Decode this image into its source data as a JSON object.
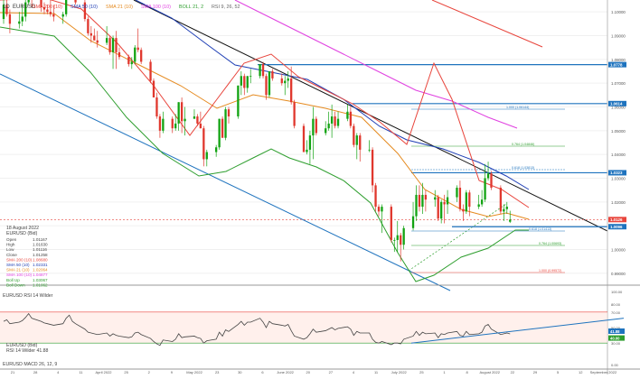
{
  "header": {
    "timeframe": "1D",
    "symbol": "EURUSD",
    "indicators": [
      "SMA 200 (10)",
      "SMA 50 (10)",
      "SMA 21 (10)",
      "SMA 100 (10)",
      "BOLL 21, 2",
      "RSI 9, 26, 52"
    ]
  },
  "info_panel": {
    "date": "18 August 2022",
    "title": "EURUSD (Bid)",
    "rows": [
      {
        "label": "Open",
        "value": "1.01167"
      },
      {
        "label": "High",
        "value": "1.01630"
      },
      {
        "label": "Low",
        "value": "1.01116"
      },
      {
        "label": "Close",
        "value": "1.01258"
      },
      {
        "label": "SMA 200 (10)",
        "value": "1.08680"
      },
      {
        "label": "SMA 50 (10)",
        "value": "1.02331"
      },
      {
        "label": "SMA 21 (10)",
        "value": "1.02064"
      },
      {
        "label": "SMA 100 (10)",
        "value": "1.04877"
      },
      {
        "label": "Boll Up",
        "value": "1.03067"
      },
      {
        "label": "Boll Down",
        "value": "1.01062"
      }
    ]
  },
  "price_axis": {
    "ticks": [
      "1.10000",
      "1.09000",
      "1.08000",
      "1.07000",
      "1.06000",
      "1.05000",
      "1.04000",
      "1.03000",
      "1.02000",
      "1.01000",
      "1.00000",
      "0.99000"
    ],
    "markers": [
      {
        "label": "1.0778",
        "color": "#1e73be"
      },
      {
        "label": "1.0614",
        "color": "#1e73be"
      },
      {
        "label": "1.0323",
        "color": "#1e73be"
      },
      {
        "label": "1.0096",
        "color": "#1e73be"
      },
      {
        "label": "1.0126",
        "color": "#e8453c"
      }
    ]
  },
  "fib_labels": [
    {
      "text": "1.000 (1.06144)",
      "color": "#1e73be"
    },
    {
      "text": "0.764 (1.04846)",
      "color": "#2e9e2e"
    },
    {
      "text": "0.618 (1.03813)",
      "color": "#1e73be"
    },
    {
      "text": "0.618 (1.01413)",
      "color": "#1e73be"
    },
    {
      "text": "0.764 (1.00693)",
      "color": "#2e9e2e"
    },
    {
      "text": "1.000 (0.99572)",
      "color": "#e8453c"
    }
  ],
  "rsi_panel": {
    "header": "EURUSD RSI 14 Wilder",
    "title": "EURUSD (Bid)",
    "value_text": "RSI 14 Wilder 41.88",
    "ticks": [
      "100.00",
      "80.00",
      "70.00",
      "50.00",
      "30.00",
      "0.00"
    ],
    "markers": [
      {
        "label": "41.88",
        "color": "#1e73be"
      },
      {
        "label": "40.00",
        "color": "#2e9e2e"
      }
    ]
  },
  "macd_label": "EURUSD MACD 26, 12, 9",
  "time_axis": {
    "ticks": [
      "21",
      "28",
      "4",
      "11",
      "April 2022",
      "25",
      "2",
      "9",
      "May 2022",
      "23",
      "30",
      "6",
      "June 2022",
      "20",
      "27",
      "4",
      "11",
      "July 2022",
      "25",
      "1",
      "8",
      "August 2022",
      "22",
      "29",
      "5",
      "12",
      "September 2022"
    ]
  },
  "chart_data": {
    "type": "candlestick",
    "title": "",
    "ylim": [
      0.985,
      1.105
    ],
    "y_axis_position": "right",
    "candles": [
      {
        "date": "2022-03-09",
        "o": 1.097,
        "h": 1.106,
        "l": 1.095,
        "c": 1.103
      },
      {
        "date": "2022-03-10",
        "o": 1.103,
        "h": 1.107,
        "l": 1.098,
        "c": 1.099
      },
      {
        "date": "2022-03-11",
        "o": 1.099,
        "h": 1.101,
        "l": 1.091,
        "c": 1.095
      },
      {
        "date": "2022-03-14",
        "o": 1.095,
        "h": 1.1,
        "l": 1.093,
        "c": 1.096
      },
      {
        "date": "2022-03-15",
        "o": 1.096,
        "h": 1.103,
        "l": 1.094,
        "c": 1.098
      },
      {
        "date": "2022-03-16",
        "o": 1.098,
        "h": 1.105,
        "l": 1.096,
        "c": 1.104
      },
      {
        "date": "2022-03-17",
        "o": 1.104,
        "h": 1.113,
        "l": 1.103,
        "c": 1.11
      },
      {
        "date": "2022-03-18",
        "o": 1.11,
        "h": 1.111,
        "l": 1.102,
        "c": 1.105
      },
      {
        "date": "2022-03-21",
        "o": 1.105,
        "h": 1.107,
        "l": 1.1,
        "c": 1.102
      },
      {
        "date": "2022-03-22",
        "o": 1.102,
        "h": 1.104,
        "l": 1.099,
        "c": 1.101
      },
      {
        "date": "2022-03-23",
        "o": 1.101,
        "h": 1.103,
        "l": 1.099,
        "c": 1.1
      },
      {
        "date": "2022-03-24",
        "o": 1.1,
        "h": 1.106,
        "l": 1.098,
        "c": 1.099
      },
      {
        "date": "2022-03-25",
        "o": 1.099,
        "h": 1.103,
        "l": 1.096,
        "c": 1.098
      },
      {
        "date": "2022-03-28",
        "o": 1.098,
        "h": 1.1,
        "l": 1.095,
        "c": 1.099
      },
      {
        "date": "2022-03-29",
        "o": 1.099,
        "h": 1.112,
        "l": 1.098,
        "c": 1.11
      },
      {
        "date": "2022-03-30",
        "o": 1.11,
        "h": 1.118,
        "l": 1.108,
        "c": 1.116
      },
      {
        "date": "2022-03-31",
        "o": 1.116,
        "h": 1.118,
        "l": 1.105,
        "c": 1.107
      },
      {
        "date": "2022-04-01",
        "o": 1.107,
        "h": 1.108,
        "l": 1.103,
        "c": 1.104
      },
      {
        "date": "2022-04-04",
        "o": 1.104,
        "h": 1.105,
        "l": 1.096,
        "c": 1.097
      },
      {
        "date": "2022-04-05",
        "o": 1.097,
        "h": 1.098,
        "l": 1.09,
        "c": 1.091
      },
      {
        "date": "2022-04-06",
        "o": 1.091,
        "h": 1.094,
        "l": 1.087,
        "c": 1.09
      },
      {
        "date": "2022-04-07",
        "o": 1.09,
        "h": 1.093,
        "l": 1.088,
        "c": 1.088
      },
      {
        "date": "2022-04-08",
        "o": 1.088,
        "h": 1.092,
        "l": 1.085,
        "c": 1.087
      },
      {
        "date": "2022-04-11",
        "o": 1.087,
        "h": 1.094,
        "l": 1.086,
        "c": 1.089
      },
      {
        "date": "2022-04-12",
        "o": 1.089,
        "h": 1.09,
        "l": 1.082,
        "c": 1.083
      },
      {
        "date": "2022-04-13",
        "o": 1.083,
        "h": 1.09,
        "l": 1.076,
        "c": 1.089
      },
      {
        "date": "2022-04-14",
        "o": 1.089,
        "h": 1.092,
        "l": 1.076,
        "c": 1.083
      },
      {
        "date": "2022-04-15",
        "o": 1.083,
        "h": 1.085,
        "l": 1.08,
        "c": 1.081
      },
      {
        "date": "2022-04-18",
        "o": 1.081,
        "h": 1.082,
        "l": 1.077,
        "c": 1.078
      },
      {
        "date": "2022-04-19",
        "o": 1.078,
        "h": 1.081,
        "l": 1.076,
        "c": 1.079
      },
      {
        "date": "2022-04-20",
        "o": 1.079,
        "h": 1.086,
        "l": 1.078,
        "c": 1.085
      },
      {
        "date": "2022-04-21",
        "o": 1.085,
        "h": 1.093,
        "l": 1.083,
        "c": 1.084
      },
      {
        "date": "2022-04-22",
        "o": 1.084,
        "h": 1.085,
        "l": 1.078,
        "c": 1.079
      },
      {
        "date": "2022-04-25",
        "o": 1.079,
        "h": 1.08,
        "l": 1.07,
        "c": 1.071
      },
      {
        "date": "2022-04-26",
        "o": 1.071,
        "h": 1.072,
        "l": 1.064,
        "c": 1.064
      },
      {
        "date": "2022-04-27",
        "o": 1.064,
        "h": 1.066,
        "l": 1.055,
        "c": 1.056
      },
      {
        "date": "2022-04-28",
        "o": 1.056,
        "h": 1.057,
        "l": 1.047,
        "c": 1.05
      },
      {
        "date": "2022-04-29",
        "o": 1.05,
        "h": 1.058,
        "l": 1.049,
        "c": 1.055
      },
      {
        "date": "2022-05-02",
        "o": 1.055,
        "h": 1.056,
        "l": 1.049,
        "c": 1.051
      },
      {
        "date": "2022-05-03",
        "o": 1.051,
        "h": 1.057,
        "l": 1.05,
        "c": 1.053
      },
      {
        "date": "2022-05-04",
        "o": 1.053,
        "h": 1.062,
        "l": 1.05,
        "c": 1.062
      },
      {
        "date": "2022-05-05",
        "o": 1.062,
        "h": 1.064,
        "l": 1.049,
        "c": 1.054
      },
      {
        "date": "2022-05-06",
        "o": 1.054,
        "h": 1.06,
        "l": 1.048,
        "c": 1.055
      },
      {
        "date": "2022-05-09",
        "o": 1.055,
        "h": 1.059,
        "l": 1.055,
        "c": 1.056
      },
      {
        "date": "2022-05-10",
        "o": 1.056,
        "h": 1.057,
        "l": 1.052,
        "c": 1.053
      },
      {
        "date": "2022-05-11",
        "o": 1.053,
        "h": 1.058,
        "l": 1.051,
        "c": 1.051
      },
      {
        "date": "2022-05-12",
        "o": 1.051,
        "h": 1.052,
        "l": 1.035,
        "c": 1.038
      },
      {
        "date": "2022-05-13",
        "o": 1.038,
        "h": 1.042,
        "l": 1.035,
        "c": 1.041
      },
      {
        "date": "2022-05-16",
        "o": 1.041,
        "h": 1.044,
        "l": 1.039,
        "c": 1.043
      },
      {
        "date": "2022-05-17",
        "o": 1.043,
        "h": 1.055,
        "l": 1.042,
        "c": 1.055
      },
      {
        "date": "2022-05-18",
        "o": 1.055,
        "h": 1.056,
        "l": 1.047,
        "c": 1.047
      },
      {
        "date": "2022-05-19",
        "o": 1.047,
        "h": 1.06,
        "l": 1.046,
        "c": 1.059
      },
      {
        "date": "2022-05-20",
        "o": 1.059,
        "h": 1.06,
        "l": 1.053,
        "c": 1.056
      },
      {
        "date": "2022-05-23",
        "o": 1.056,
        "h": 1.069,
        "l": 1.055,
        "c": 1.069
      },
      {
        "date": "2022-05-24",
        "o": 1.069,
        "h": 1.075,
        "l": 1.065,
        "c": 1.073
      },
      {
        "date": "2022-05-25",
        "o": 1.073,
        "h": 1.074,
        "l": 1.065,
        "c": 1.068
      },
      {
        "date": "2022-05-26",
        "o": 1.068,
        "h": 1.073,
        "l": 1.066,
        "c": 1.073
      },
      {
        "date": "2022-05-27",
        "o": 1.073,
        "h": 1.076,
        "l": 1.07,
        "c": 1.073
      },
      {
        "date": "2022-05-30",
        "o": 1.073,
        "h": 1.078,
        "l": 1.072,
        "c": 1.078
      },
      {
        "date": "2022-05-31",
        "o": 1.078,
        "h": 1.079,
        "l": 1.072,
        "c": 1.073
      },
      {
        "date": "2022-06-01",
        "o": 1.073,
        "h": 1.074,
        "l": 1.063,
        "c": 1.065
      },
      {
        "date": "2022-06-02",
        "o": 1.065,
        "h": 1.075,
        "l": 1.064,
        "c": 1.075
      },
      {
        "date": "2022-06-03",
        "o": 1.075,
        "h": 1.076,
        "l": 1.071,
        "c": 1.072
      },
      {
        "date": "2022-06-06",
        "o": 1.072,
        "h": 1.074,
        "l": 1.069,
        "c": 1.07
      },
      {
        "date": "2022-06-07",
        "o": 1.07,
        "h": 1.073,
        "l": 1.065,
        "c": 1.071
      },
      {
        "date": "2022-06-08",
        "o": 1.071,
        "h": 1.075,
        "l": 1.068,
        "c": 1.072
      },
      {
        "date": "2022-06-09",
        "o": 1.072,
        "h": 1.077,
        "l": 1.061,
        "c": 1.062
      },
      {
        "date": "2022-06-10",
        "o": 1.062,
        "h": 1.063,
        "l": 1.051,
        "c": 1.052
      },
      {
        "date": "2022-06-13",
        "o": 1.052,
        "h": 1.053,
        "l": 1.041,
        "c": 1.041
      },
      {
        "date": "2022-06-14",
        "o": 1.041,
        "h": 1.046,
        "l": 1.04,
        "c": 1.042
      },
      {
        "date": "2022-06-15",
        "o": 1.042,
        "h": 1.05,
        "l": 1.036,
        "c": 1.048
      },
      {
        "date": "2022-06-16",
        "o": 1.048,
        "h": 1.06,
        "l": 1.038,
        "c": 1.055
      },
      {
        "date": "2022-06-17",
        "o": 1.055,
        "h": 1.056,
        "l": 1.048,
        "c": 1.049
      },
      {
        "date": "2022-06-20",
        "o": 1.049,
        "h": 1.054,
        "l": 1.048,
        "c": 1.051
      },
      {
        "date": "2022-06-21",
        "o": 1.051,
        "h": 1.058,
        "l": 1.05,
        "c": 1.053
      },
      {
        "date": "2022-06-22",
        "o": 1.053,
        "h": 1.061,
        "l": 1.047,
        "c": 1.056
      },
      {
        "date": "2022-06-23",
        "o": 1.056,
        "h": 1.058,
        "l": 1.051,
        "c": 1.052
      },
      {
        "date": "2022-06-24",
        "o": 1.052,
        "h": 1.058,
        "l": 1.051,
        "c": 1.055
      },
      {
        "date": "2022-06-27",
        "o": 1.055,
        "h": 1.061,
        "l": 1.054,
        "c": 1.058
      },
      {
        "date": "2022-06-28",
        "o": 1.058,
        "h": 1.06,
        "l": 1.051,
        "c": 1.052
      },
      {
        "date": "2022-06-29",
        "o": 1.052,
        "h": 1.053,
        "l": 1.043,
        "c": 1.044
      },
      {
        "date": "2022-06-30",
        "o": 1.044,
        "h": 1.049,
        "l": 1.038,
        "c": 1.048
      },
      {
        "date": "2022-07-01",
        "o": 1.048,
        "h": 1.049,
        "l": 1.037,
        "c": 1.042
      },
      {
        "date": "2022-07-04",
        "o": 1.042,
        "h": 1.046,
        "l": 1.041,
        "c": 1.042
      },
      {
        "date": "2022-07-05",
        "o": 1.042,
        "h": 1.043,
        "l": 1.024,
        "c": 1.027
      },
      {
        "date": "2022-07-06",
        "o": 1.027,
        "h": 1.028,
        "l": 1.016,
        "c": 1.018
      },
      {
        "date": "2022-07-07",
        "o": 1.018,
        "h": 1.019,
        "l": 1.014,
        "c": 1.016
      },
      {
        "date": "2022-07-08",
        "o": 1.016,
        "h": 1.019,
        "l": 1.007,
        "c": 1.018
      },
      {
        "date": "2022-07-11",
        "o": 1.018,
        "h": 1.019,
        "l": 1.003,
        "c": 1.004
      },
      {
        "date": "2022-07-12",
        "o": 1.004,
        "h": 1.005,
        "l": 0.999,
        "c": 1.004
      },
      {
        "date": "2022-07-13",
        "o": 1.004,
        "h": 1.012,
        "l": 0.999,
        "c": 1.006
      },
      {
        "date": "2022-07-14",
        "o": 1.006,
        "h": 1.007,
        "l": 0.995,
        "c": 1.002
      },
      {
        "date": "2022-07-15",
        "o": 1.002,
        "h": 1.01,
        "l": 1.0,
        "c": 1.009
      },
      {
        "date": "2022-07-18",
        "o": 1.009,
        "h": 1.02,
        "l": 1.008,
        "c": 1.014
      },
      {
        "date": "2022-07-19",
        "o": 1.014,
        "h": 1.027,
        "l": 1.012,
        "c": 1.023
      },
      {
        "date": "2022-07-20",
        "o": 1.023,
        "h": 1.027,
        "l": 1.016,
        "c": 1.018
      },
      {
        "date": "2022-07-21",
        "o": 1.018,
        "h": 1.028,
        "l": 1.015,
        "c": 1.023
      },
      {
        "date": "2022-07-22",
        "o": 1.023,
        "h": 1.025,
        "l": 1.016,
        "c": 1.021
      },
      {
        "date": "2022-07-25",
        "o": 1.021,
        "h": 1.025,
        "l": 1.018,
        "c": 1.022
      },
      {
        "date": "2022-07-26",
        "o": 1.022,
        "h": 1.023,
        "l": 1.012,
        "c": 1.013
      },
      {
        "date": "2022-07-27",
        "o": 1.013,
        "h": 1.021,
        "l": 1.011,
        "c": 1.02
      },
      {
        "date": "2022-07-28",
        "o": 1.02,
        "h": 1.023,
        "l": 1.011,
        "c": 1.019
      },
      {
        "date": "2022-07-29",
        "o": 1.019,
        "h": 1.025,
        "l": 1.015,
        "c": 1.022
      },
      {
        "date": "2022-08-01",
        "o": 1.022,
        "h": 1.027,
        "l": 1.02,
        "c": 1.026
      },
      {
        "date": "2022-08-02",
        "o": 1.026,
        "h": 1.029,
        "l": 1.016,
        "c": 1.017
      },
      {
        "date": "2022-08-03",
        "o": 1.017,
        "h": 1.019,
        "l": 1.012,
        "c": 1.016
      },
      {
        "date": "2022-08-04",
        "o": 1.016,
        "h": 1.025,
        "l": 1.015,
        "c": 1.024
      },
      {
        "date": "2022-08-05",
        "o": 1.024,
        "h": 1.025,
        "l": 1.014,
        "c": 1.018
      },
      {
        "date": "2022-08-08",
        "o": 1.018,
        "h": 1.023,
        "l": 1.017,
        "c": 1.019
      },
      {
        "date": "2022-08-09",
        "o": 1.019,
        "h": 1.025,
        "l": 1.018,
        "c": 1.021
      },
      {
        "date": "2022-08-10",
        "o": 1.021,
        "h": 1.036,
        "l": 1.02,
        "c": 1.03
      },
      {
        "date": "2022-08-11",
        "o": 1.03,
        "h": 1.037,
        "l": 1.029,
        "c": 1.032
      },
      {
        "date": "2022-08-12",
        "o": 1.032,
        "h": 1.033,
        "l": 1.025,
        "c": 1.026
      },
      {
        "date": "2022-08-15",
        "o": 1.026,
        "h": 1.027,
        "l": 1.015,
        "c": 1.016
      },
      {
        "date": "2022-08-16",
        "o": 1.016,
        "h": 1.019,
        "l": 1.012,
        "c": 1.017
      },
      {
        "date": "2022-08-17",
        "o": 1.017,
        "h": 1.02,
        "l": 1.015,
        "c": 1.018
      },
      {
        "date": "2022-08-18",
        "o": 1.01167,
        "h": 1.0163,
        "l": 1.01116,
        "c": 1.01258
      }
    ],
    "horizontal_levels": [
      {
        "value": 1.0778,
        "color": "#1e73be"
      },
      {
        "value": 1.0614,
        "color": "#1e73be"
      },
      {
        "value": 1.0323,
        "color": "#1e73be"
      },
      {
        "value": 1.0096,
        "color": "#1e73be"
      }
    ],
    "rsi": {
      "ylim": [
        0,
        100
      ],
      "values": [
        58,
        60,
        55,
        57,
        59,
        63,
        68,
        62,
        58,
        56,
        55,
        54,
        53,
        55,
        62,
        66,
        58,
        55,
        48,
        44,
        43,
        42,
        41,
        43,
        39,
        42,
        40,
        39,
        37,
        38,
        43,
        44,
        41,
        36,
        32,
        29,
        27,
        34,
        32,
        35,
        42,
        37,
        38,
        39,
        37,
        36,
        30,
        33,
        35,
        44,
        39,
        47,
        45,
        54,
        58,
        53,
        57,
        57,
        62,
        57,
        50,
        58,
        55,
        53,
        52,
        54,
        46,
        39,
        35,
        37,
        42,
        48,
        44,
        46,
        48,
        50,
        47,
        49,
        51,
        48,
        40,
        45,
        43,
        43,
        35,
        31,
        30,
        32,
        28,
        30,
        30,
        29,
        35,
        39,
        45,
        40,
        44,
        42,
        43,
        37,
        42,
        41,
        43,
        45,
        40,
        39,
        45,
        41,
        42,
        44,
        52,
        54,
        48,
        41,
        42,
        43,
        41.88
      ]
    }
  }
}
